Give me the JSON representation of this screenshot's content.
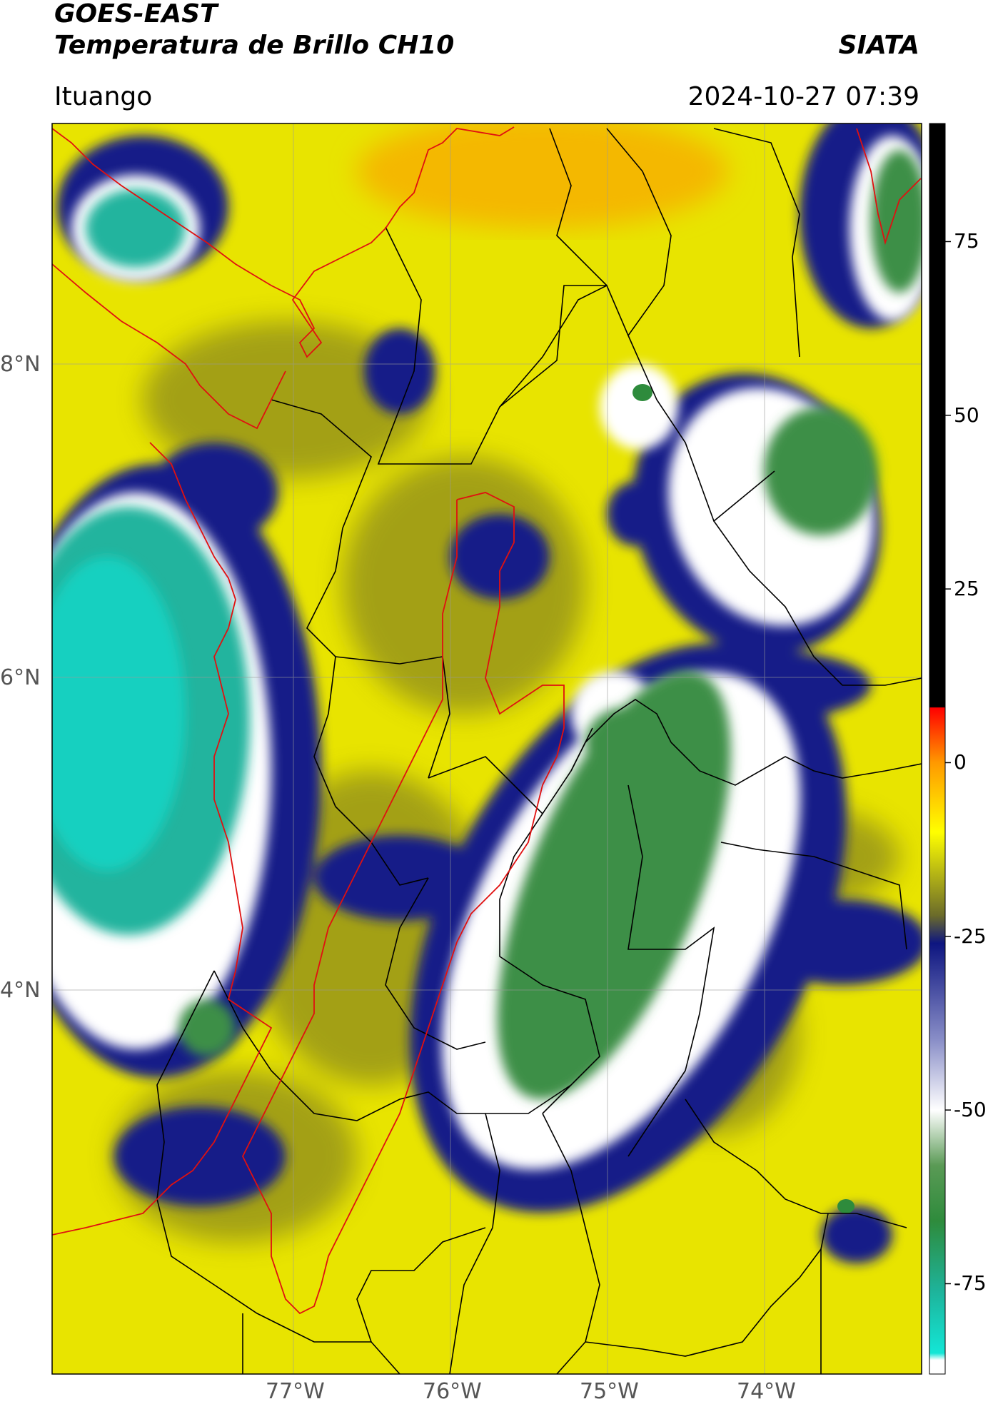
{
  "header": {
    "satellite": "GOES-EAST",
    "product": "Temperatura de Brillo CH10",
    "agency": "SIATA",
    "location": "Ituango",
    "datetime": "2024-10-27 07:39"
  },
  "axes": {
    "lat_labels": [
      "8°N",
      "6°N",
      "4°N"
    ],
    "lon_labels": [
      "77°W",
      "76°W",
      "75°W",
      "74°W"
    ]
  },
  "colorbar": {
    "labels": [
      "75",
      "50",
      "25",
      "0",
      "-25",
      "-50",
      "-75"
    ],
    "values": [
      75,
      50,
      25,
      0,
      -25,
      -50,
      -75
    ],
    "range": [
      -88,
      92
    ],
    "stops": [
      {
        "v": 92,
        "c": "#000000"
      },
      {
        "v": 8,
        "c": "#000000"
      },
      {
        "v": 7.9,
        "c": "#ff0000"
      },
      {
        "v": 0,
        "c": "#ff9900"
      },
      {
        "v": -10,
        "c": "#ffff00"
      },
      {
        "v": -22,
        "c": "#6b6b2a"
      },
      {
        "v": -26,
        "c": "#0d1580"
      },
      {
        "v": -40,
        "c": "#8a8fc8"
      },
      {
        "v": -50,
        "c": "#ffffff"
      },
      {
        "v": -58,
        "c": "#5a9a55"
      },
      {
        "v": -66,
        "c": "#2e8b3c"
      },
      {
        "v": -76,
        "c": "#1eb39a"
      },
      {
        "v": -85,
        "c": "#13e6d6"
      },
      {
        "v": -86,
        "c": "#ffffff"
      },
      {
        "v": -88,
        "c": "#ffffff"
      }
    ]
  },
  "colors": {
    "country_border": "#e01010",
    "dept_border": "#000000",
    "grid": "#aaaaaa"
  }
}
